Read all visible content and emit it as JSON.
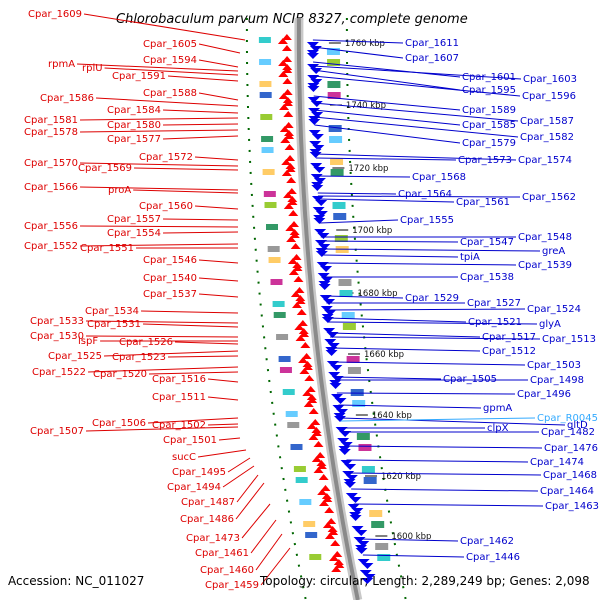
{
  "header": {
    "title": "Chlorobaculum parvum NCIB 8327, complete genome"
  },
  "footer": {
    "accession": "Accession: NC_011027",
    "topology": "Topology: circular; Length: 2,289,249 bp; Genes: 2,098"
  },
  "colors": {
    "left_label": "#dd0000",
    "right_label": "#0000cc",
    "highlight_label": "#33aaff",
    "backbone": "#8a8a8a",
    "forward_arrow": "#ff0000",
    "reverse_arrow": "#0000ee",
    "tick_mark": "#006600"
  },
  "ticks": [
    {
      "label": "1760 kbp"
    },
    {
      "label": "1740 kbp"
    },
    {
      "label": "1720 kbp"
    },
    {
      "label": "1700 kbp"
    },
    {
      "label": "1680 kbp"
    },
    {
      "label": "1660 kbp"
    },
    {
      "label": "1640 kbp"
    },
    {
      "label": "1620 kbp"
    },
    {
      "label": "1600 kbp"
    }
  ],
  "left_labels": [
    {
      "text": "Cpar_1609"
    },
    {
      "text": "Cpar_1605"
    },
    {
      "text": "Cpar_1594"
    },
    {
      "text": "rpmA"
    },
    {
      "text": "rplU"
    },
    {
      "text": "Cpar_1591"
    },
    {
      "text": "Cpar_1588"
    },
    {
      "text": "Cpar_1586"
    },
    {
      "text": "Cpar_1584"
    },
    {
      "text": "Cpar_1581"
    },
    {
      "text": "Cpar_1580"
    },
    {
      "text": "Cpar_1578"
    },
    {
      "text": "Cpar_1577"
    },
    {
      "text": "Cpar_1572"
    },
    {
      "text": "Cpar_1570"
    },
    {
      "text": "Cpar_1569"
    },
    {
      "text": "Cpar_1566"
    },
    {
      "text": "proA"
    },
    {
      "text": "Cpar_1560"
    },
    {
      "text": "Cpar_1557"
    },
    {
      "text": "Cpar_1556"
    },
    {
      "text": "Cpar_1554"
    },
    {
      "text": "Cpar_1552"
    },
    {
      "text": "Cpar_1551"
    },
    {
      "text": "Cpar_1546"
    },
    {
      "text": "Cpar_1540"
    },
    {
      "text": "Cpar_1537"
    },
    {
      "text": "Cpar_1534"
    },
    {
      "text": "Cpar_1533"
    },
    {
      "text": "Cpar_1531"
    },
    {
      "text": "Cpar_1530"
    },
    {
      "text": "ispF"
    },
    {
      "text": "Cpar_1526"
    },
    {
      "text": "Cpar_1525"
    },
    {
      "text": "Cpar_1523"
    },
    {
      "text": "Cpar_1522"
    },
    {
      "text": "Cpar_1520"
    },
    {
      "text": "Cpar_1516"
    },
    {
      "text": "Cpar_1511"
    },
    {
      "text": "Cpar_1506"
    },
    {
      "text": "Cpar_1502"
    },
    {
      "text": "Cpar_1507"
    },
    {
      "text": "Cpar_1501"
    },
    {
      "text": "sucC"
    },
    {
      "text": "Cpar_1495"
    },
    {
      "text": "Cpar_1494"
    },
    {
      "text": "Cpar_1487"
    },
    {
      "text": "Cpar_1486"
    },
    {
      "text": "Cpar_1473"
    },
    {
      "text": "Cpar_1461"
    },
    {
      "text": "Cpar_1460"
    },
    {
      "text": "Cpar_1459"
    }
  ],
  "right_labels": [
    {
      "text": "Cpar_1611"
    },
    {
      "text": "Cpar_1607"
    },
    {
      "text": "Cpar_1601"
    },
    {
      "text": "Cpar_1603"
    },
    {
      "text": "Cpar_1595"
    },
    {
      "text": "Cpar_1596"
    },
    {
      "text": "Cpar_1589"
    },
    {
      "text": "Cpar_1587"
    },
    {
      "text": "Cpar_1585"
    },
    {
      "text": "Cpar_1582"
    },
    {
      "text": "Cpar_1579"
    },
    {
      "text": "Cpar_1574"
    },
    {
      "text": "Cpar_1573"
    },
    {
      "text": "Cpar_1568"
    },
    {
      "text": "Cpar_1564"
    },
    {
      "text": "Cpar_1562"
    },
    {
      "text": "Cpar_1561"
    },
    {
      "text": "Cpar_1555"
    },
    {
      "text": "Cpar_1548"
    },
    {
      "text": "Cpar_1547"
    },
    {
      "text": "greA"
    },
    {
      "text": "tpiA"
    },
    {
      "text": "Cpar_1539"
    },
    {
      "text": "Cpar_1538"
    },
    {
      "text": "Cpar_1529"
    },
    {
      "text": "Cpar_1527"
    },
    {
      "text": "Cpar_1524"
    },
    {
      "text": "Cpar_1521"
    },
    {
      "text": "glyA"
    },
    {
      "text": "Cpar_1517"
    },
    {
      "text": "Cpar_1513"
    },
    {
      "text": "Cpar_1512"
    },
    {
      "text": "Cpar_1503"
    },
    {
      "text": "Cpar_1505"
    },
    {
      "text": "Cpar_1498"
    },
    {
      "text": "Cpar_1496"
    },
    {
      "text": "gpmA"
    },
    {
      "text": "gltD"
    },
    {
      "text": "Cpar_R0045",
      "highlight": true
    },
    {
      "text": "clpX"
    },
    {
      "text": "Cpar_1482"
    },
    {
      "text": "Cpar_1476"
    },
    {
      "text": "Cpar_1474"
    },
    {
      "text": "Cpar_1468"
    },
    {
      "text": "Cpar_1464"
    },
    {
      "text": "Cpar_1463"
    },
    {
      "text": "Cpar_1462"
    },
    {
      "text": "Cpar_1446"
    }
  ]
}
